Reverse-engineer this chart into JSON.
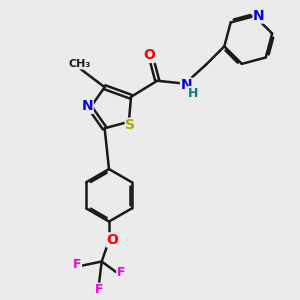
{
  "bg_color": "#ebebeb",
  "bond_color": "#1a1a1a",
  "bond_width": 1.8,
  "atom_colors": {
    "N": "#0000ee",
    "S": "#aaaa00",
    "O": "#ff0000",
    "F": "#ee00ee",
    "C": "#1a1a1a",
    "H": "#008080"
  },
  "font_size": 10,
  "font_size_small": 9
}
